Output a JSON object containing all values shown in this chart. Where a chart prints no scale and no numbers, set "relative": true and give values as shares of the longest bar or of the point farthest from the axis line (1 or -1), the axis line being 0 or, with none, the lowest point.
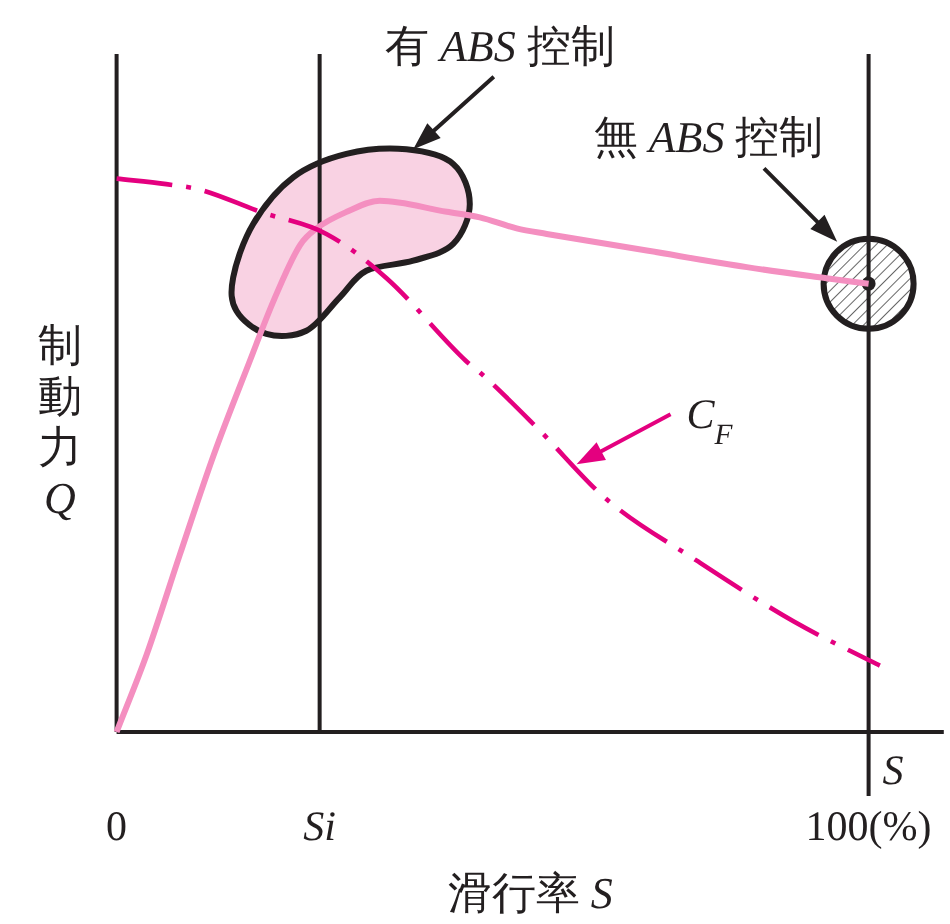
{
  "chart_data": {
    "type": "line",
    "relative": true,
    "xlabel": "滑行率 *S*",
    "ylabel": "制動力 *Q*",
    "xlim": [
      0,
      110
    ],
    "xticks": [
      {
        "value": 0,
        "label": "0"
      },
      {
        "value": 27,
        "label": "*Si*"
      },
      {
        "value": 100,
        "label": "100(%)"
      }
    ],
    "ref_lines": [
      {
        "axis": "x",
        "value": 27
      },
      {
        "axis": "x",
        "value": 100,
        "label": "S"
      }
    ],
    "annotations": [
      "有 *ABS* 控制",
      "無 *ABS* 控制"
    ],
    "series": [
      {
        "color": "#f48fc0",
        "line_style": "solid",
        "x": [
          0,
          4,
          8.4,
          12.9,
          17.7,
          20.9,
          24.4,
          26.6,
          30.6,
          35,
          43.9,
          48.3,
          53.2,
          57.2,
          70.5,
          83.8,
          94.4,
          100
        ],
        "values": [
          0,
          0.14,
          0.32,
          0.5,
          0.67,
          0.78,
          0.88,
          0.91,
          0.94,
          0.96,
          0.94,
          0.93,
          0.91,
          0.9,
          0.87,
          0.84,
          0.82,
          0.81
        ]
      },
      {
        "name": "C$_{F}$",
        "color": "#e4007f",
        "line_style": "dashdot",
        "x": [
          0,
          6.6,
          11.1,
          19.1,
          27.9,
          35.9,
          46.5,
          48.3,
          55.9,
          65.2,
          77.1,
          90,
          100,
          101.5
        ],
        "values": [
          1,
          0.99,
          0.98,
          0.94,
          0.9,
          0.82,
          0.67,
          0.65,
          0.55,
          0.42,
          0.31,
          0.2,
          0.13,
          0.12
        ]
      }
    ]
  }
}
